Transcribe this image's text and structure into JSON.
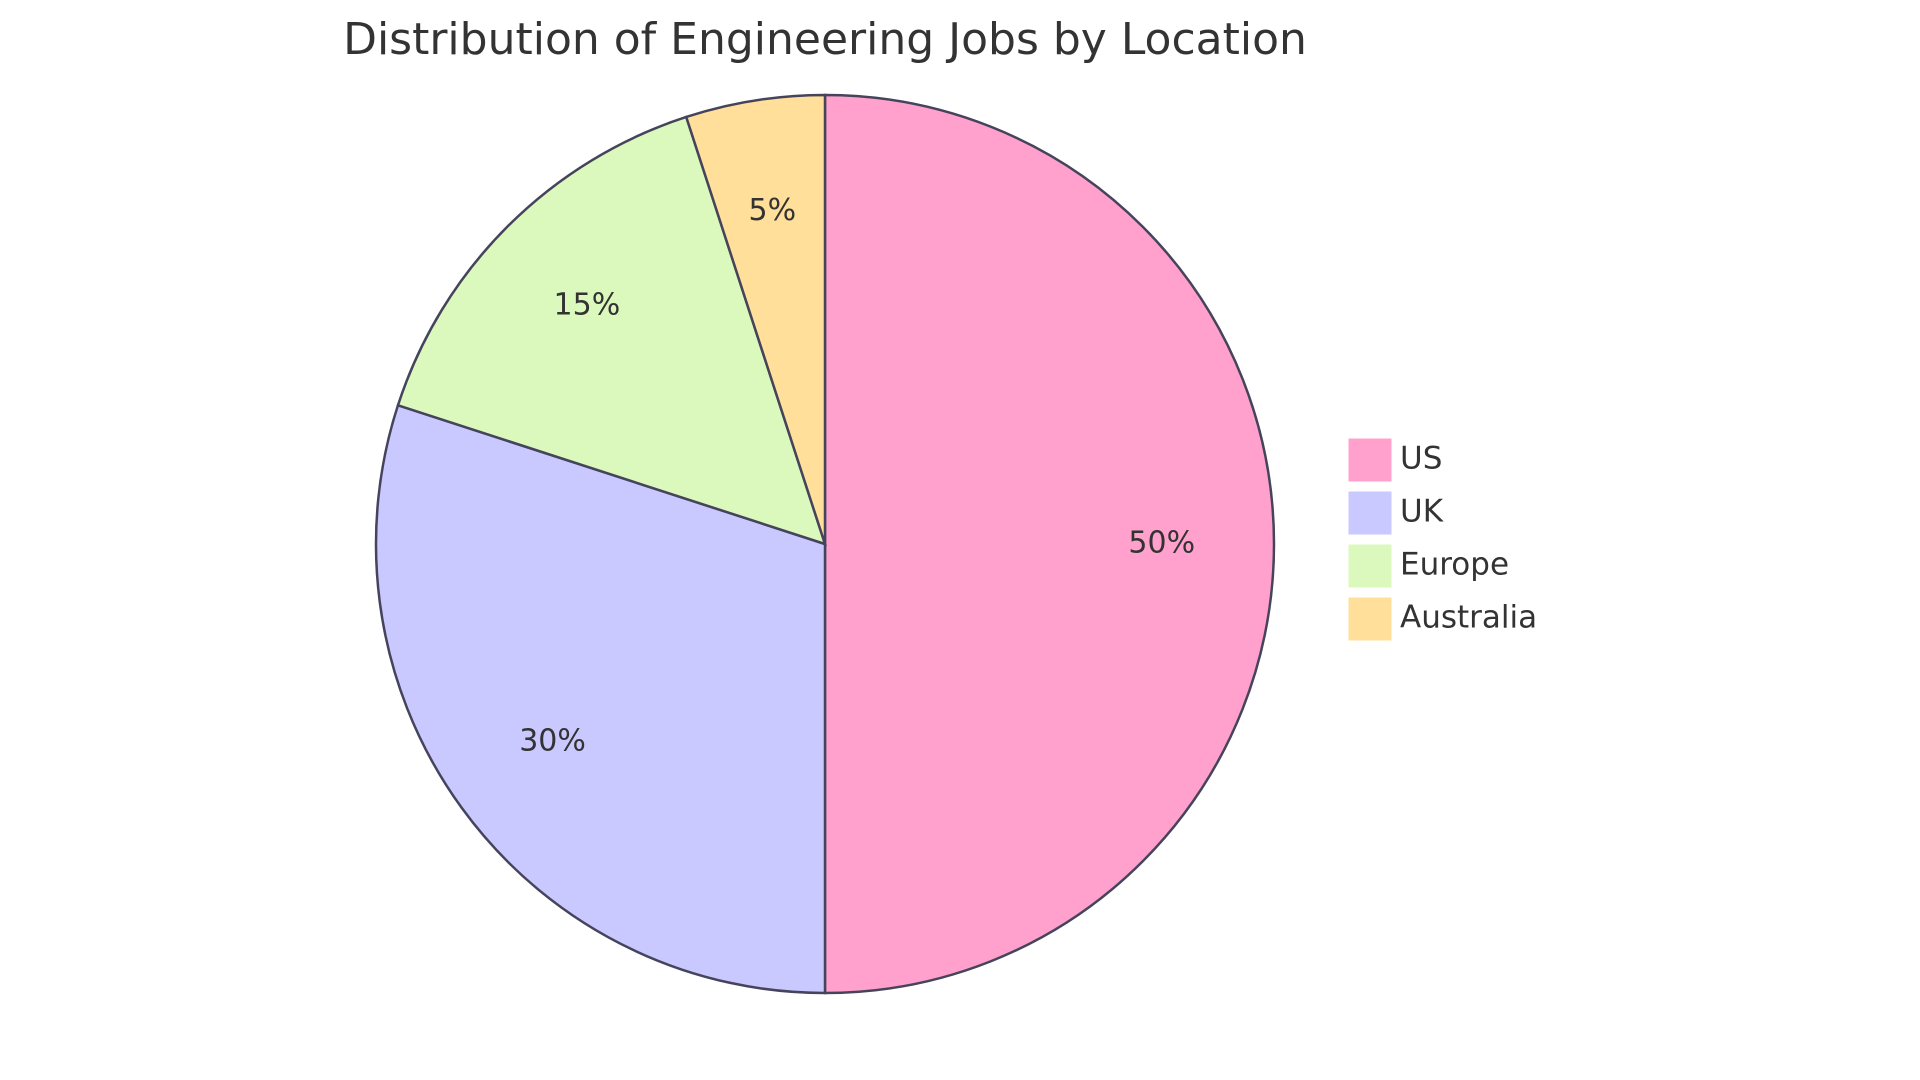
{
  "chart_data": {
    "type": "pie",
    "title": "Distribution of Engineering Jobs by Location",
    "categories": [
      "US",
      "UK",
      "Europe",
      "Australia"
    ],
    "values": [
      50,
      30,
      15,
      5
    ],
    "value_labels": [
      "50%",
      "30%",
      "15%",
      "5%"
    ],
    "colors": [
      "#ffa1cc",
      "#c9c9ff",
      "#dbf9bc",
      "#ffdf99"
    ],
    "legend": "right"
  }
}
